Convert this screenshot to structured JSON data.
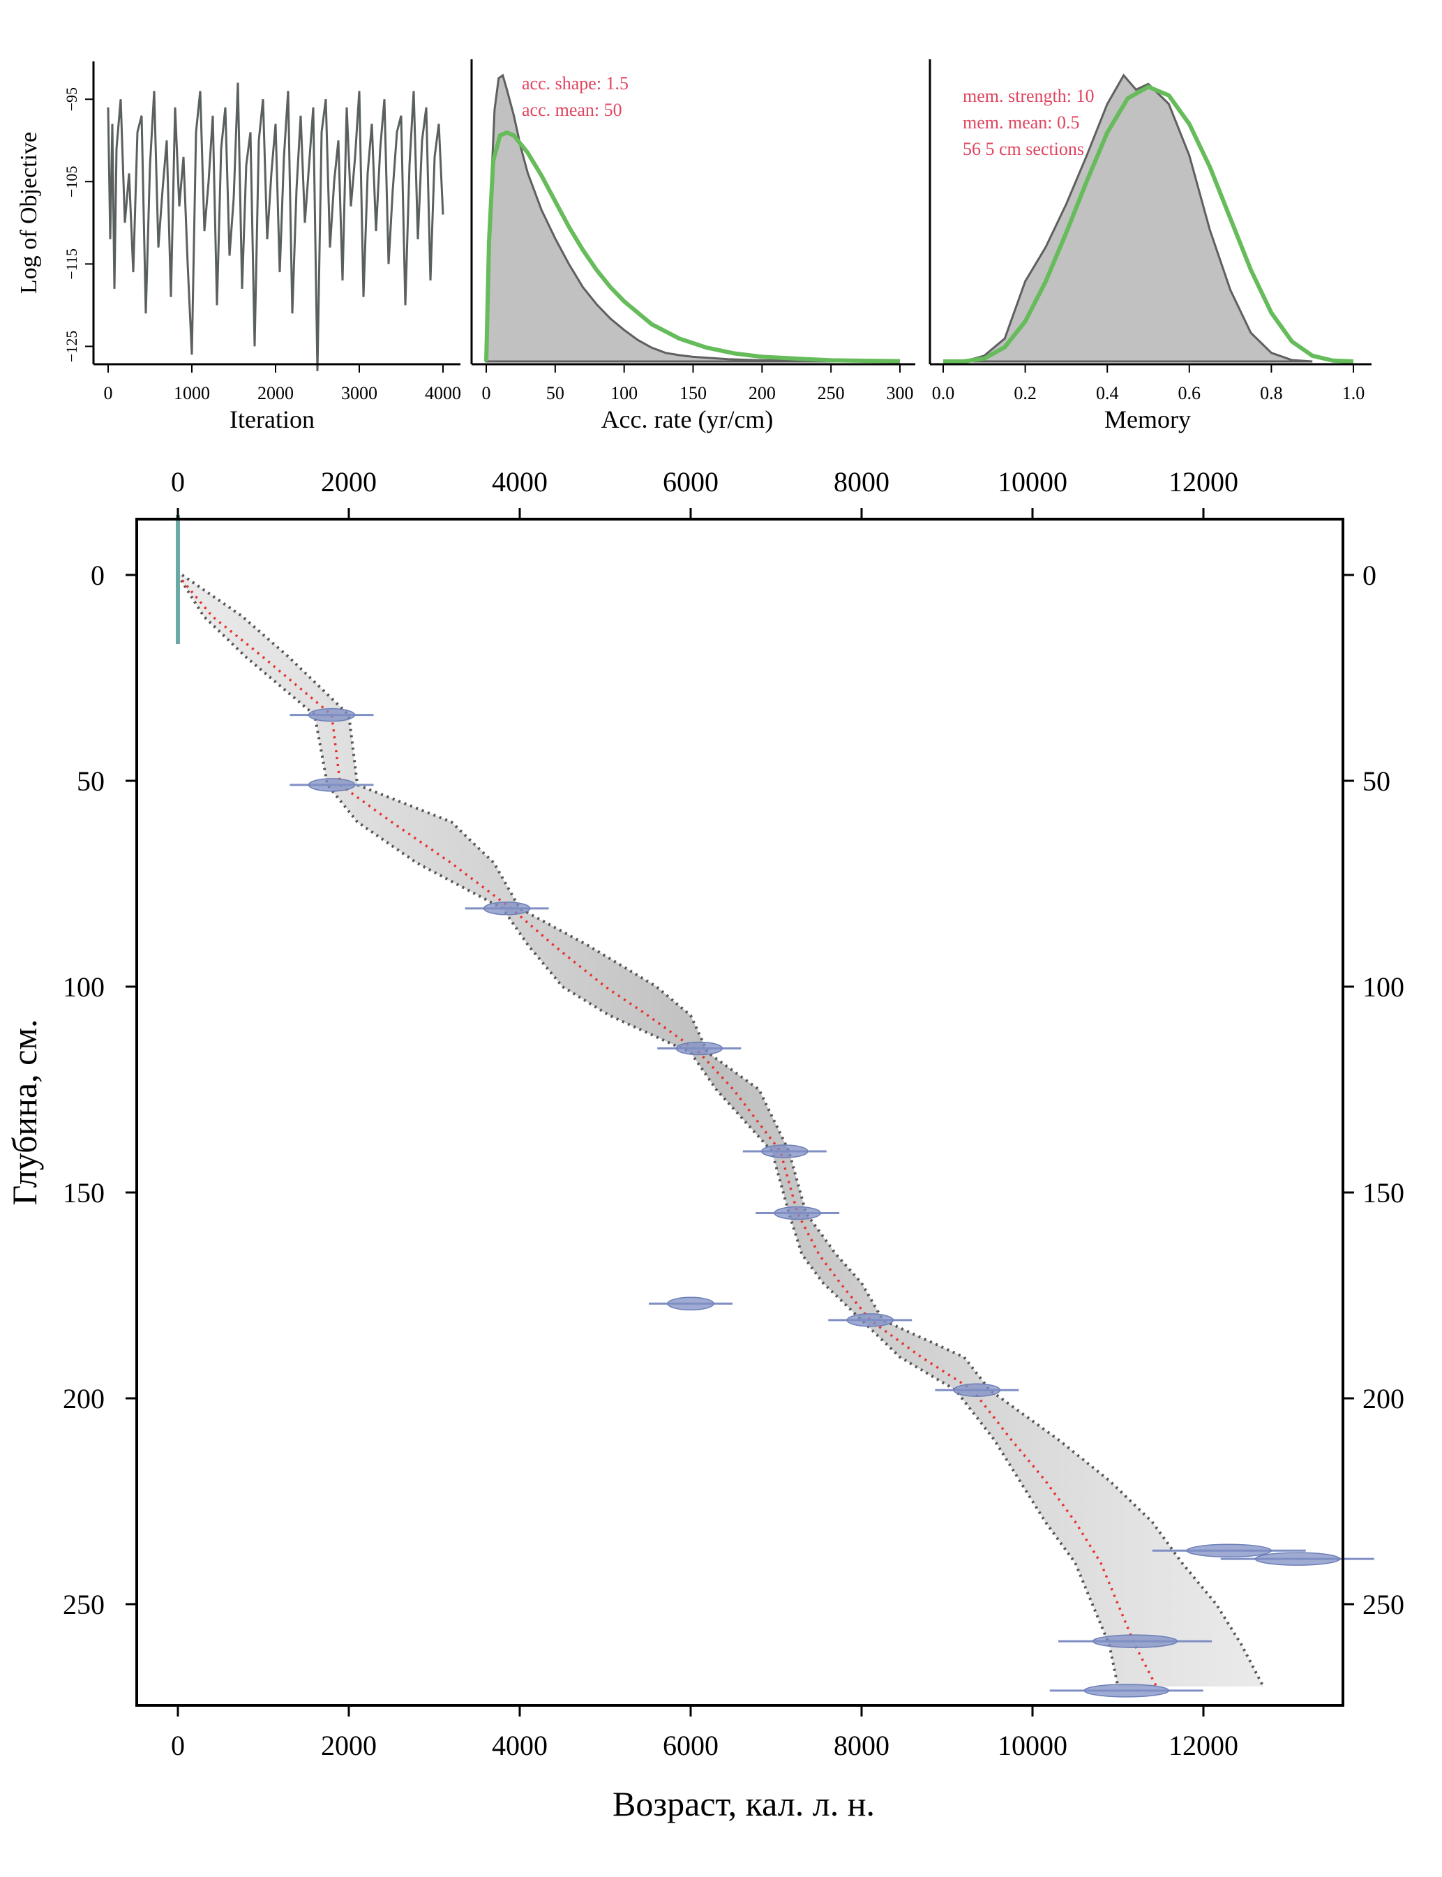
{
  "chart_data": [
    {
      "id": "trace",
      "type": "line",
      "xlabel": "Iteration",
      "ylabel": "Log of Objective",
      "xlim": [
        0,
        4000
      ],
      "ylim": [
        -127,
        -91
      ],
      "xticks": [
        0,
        1000,
        2000,
        3000,
        4000
      ],
      "yticks": [
        -95,
        -105,
        -115,
        -125
      ],
      "series": [
        {
          "color": "#5a5f60",
          "x": [
            0,
            25,
            50,
            75,
            100,
            150,
            200,
            250,
            300,
            350,
            400,
            450,
            500,
            550,
            600,
            650,
            700,
            750,
            800,
            850,
            900,
            950,
            1000,
            1050,
            1100,
            1150,
            1200,
            1250,
            1300,
            1350,
            1400,
            1450,
            1500,
            1550,
            1600,
            1650,
            1700,
            1750,
            1800,
            1850,
            1900,
            1950,
            2000,
            2050,
            2100,
            2150,
            2200,
            2250,
            2300,
            2350,
            2400,
            2450,
            2500,
            2550,
            2600,
            2650,
            2700,
            2750,
            2800,
            2850,
            2900,
            2950,
            3000,
            3050,
            3100,
            3150,
            3200,
            3250,
            3300,
            3350,
            3400,
            3450,
            3500,
            3550,
            3600,
            3650,
            3700,
            3750,
            3800,
            3850,
            3900,
            3950,
            4000
          ],
          "y": [
            -96,
            -112,
            -98,
            -118,
            -101,
            -95,
            -110,
            -104,
            -116,
            -99,
            -97,
            -121,
            -103,
            -94,
            -113,
            -106,
            -100,
            -119,
            -96,
            -108,
            -102,
            -115,
            -126,
            -99,
            -94,
            -111,
            -105,
            -97,
            -120,
            -101,
            -96,
            -114,
            -107,
            -93,
            -118,
            -103,
            -99,
            -125,
            -100,
            -95,
            -112,
            -104,
            -98,
            -116,
            -102,
            -94,
            -121,
            -106,
            -97,
            -110,
            -103,
            -96,
            -128,
            -99,
            -95,
            -113,
            -105,
            -100,
            -117,
            -96,
            -108,
            -102,
            -94,
            -119,
            -104,
            -98,
            -111,
            -101,
            -95,
            -115,
            -106,
            -99,
            -97,
            -120,
            -103,
            -94,
            -112,
            -100,
            -96,
            -117,
            -102,
            -98,
            -109
          ]
        }
      ]
    },
    {
      "id": "acc_rate",
      "type": "area",
      "xlabel": "Acc. rate (yr/cm)",
      "xlim": [
        0,
        300
      ],
      "xticks": [
        0,
        50,
        100,
        150,
        200,
        250,
        300
      ],
      "annotations": [
        "acc. shape: 1.5",
        "acc. mean: 50"
      ],
      "posterior": {
        "x": [
          0,
          3,
          6,
          9,
          12,
          15,
          20,
          25,
          30,
          40,
          50,
          60,
          70,
          80,
          90,
          100,
          110,
          120,
          130,
          140,
          150,
          175,
          200,
          250,
          300
        ],
        "density": [
          0.0,
          0.55,
          0.88,
          0.99,
          1.0,
          0.95,
          0.86,
          0.75,
          0.66,
          0.53,
          0.43,
          0.34,
          0.26,
          0.2,
          0.15,
          0.11,
          0.075,
          0.048,
          0.03,
          0.022,
          0.016,
          0.008,
          0.004,
          0.001,
          0.0
        ]
      },
      "prior": {
        "color": "#66bb5a",
        "x": [
          0,
          2,
          5,
          10,
          15,
          20,
          30,
          40,
          50,
          60,
          70,
          80,
          90,
          100,
          120,
          140,
          160,
          180,
          200,
          250,
          300
        ],
        "density": [
          0.0,
          0.42,
          0.7,
          0.79,
          0.8,
          0.79,
          0.73,
          0.65,
          0.56,
          0.47,
          0.39,
          0.32,
          0.26,
          0.21,
          0.13,
          0.08,
          0.048,
          0.028,
          0.016,
          0.004,
          0.001
        ]
      }
    },
    {
      "id": "memory",
      "type": "area",
      "xlabel": "Memory",
      "xlim": [
        0,
        1
      ],
      "xticks": [
        0.0,
        0.2,
        0.4,
        0.6,
        0.8,
        1.0
      ],
      "annotations": [
        "mem. strength: 10",
        "mem. mean: 0.5",
        "56 5 cm sections"
      ],
      "posterior": {
        "x": [
          0.05,
          0.1,
          0.15,
          0.2,
          0.25,
          0.3,
          0.35,
          0.4,
          0.44,
          0.47,
          0.5,
          0.55,
          0.6,
          0.65,
          0.7,
          0.75,
          0.8,
          0.85,
          0.9
        ],
        "density": [
          0.0,
          0.02,
          0.08,
          0.28,
          0.4,
          0.55,
          0.72,
          0.9,
          1.0,
          0.95,
          0.97,
          0.9,
          0.72,
          0.46,
          0.25,
          0.1,
          0.03,
          0.005,
          0.0
        ]
      },
      "prior": {
        "color": "#66bb5a",
        "x": [
          0.0,
          0.05,
          0.1,
          0.15,
          0.2,
          0.25,
          0.3,
          0.35,
          0.4,
          0.45,
          0.5,
          0.55,
          0.6,
          0.65,
          0.7,
          0.75,
          0.8,
          0.85,
          0.9,
          0.95,
          1.0
        ],
        "density": [
          0.0,
          0.0,
          0.01,
          0.05,
          0.14,
          0.28,
          0.45,
          0.63,
          0.8,
          0.92,
          0.96,
          0.93,
          0.83,
          0.68,
          0.5,
          0.32,
          0.17,
          0.07,
          0.02,
          0.003,
          0.0
        ]
      }
    },
    {
      "id": "age_depth",
      "type": "line",
      "xlabel": "Возраст, кал. л. н.",
      "ylabel": "Глубина, см.",
      "xlim": [
        -500,
        13800
      ],
      "ylim": [
        -14,
        275
      ],
      "xticks": [
        0,
        2000,
        4000,
        6000,
        8000,
        10000,
        12000
      ],
      "yticks": [
        0,
        50,
        100,
        150,
        200,
        250
      ],
      "model": {
        "depth": [
          0,
          10,
          20,
          34,
          51,
          60,
          70,
          81,
          90,
          100,
          107,
          116,
          125,
          140,
          155,
          165,
          172,
          181,
          190,
          198,
          210,
          220,
          230,
          240,
          250,
          260,
          270
        ],
        "median": [
          0,
          400,
          1000,
          1800,
          1900,
          2500,
          3200,
          3900,
          4400,
          5000,
          5500,
          6100,
          6500,
          7050,
          7250,
          7500,
          7750,
          8100,
          8700,
          9300,
          9750,
          10150,
          10500,
          10800,
          11000,
          11200,
          11450
        ],
        "min": [
          0,
          300,
          800,
          1600,
          1750,
          2100,
          2800,
          3800,
          4100,
          4500,
          5050,
          6000,
          6300,
          6950,
          7150,
          7300,
          7550,
          8000,
          8450,
          9100,
          9550,
          9850,
          10150,
          10500,
          10700,
          10900,
          11000
        ],
        "max": [
          50,
          750,
          1300,
          2000,
          2100,
          3200,
          3700,
          4000,
          4800,
          5600,
          6000,
          6200,
          6800,
          7150,
          7350,
          7700,
          8000,
          8250,
          9200,
          9500,
          10300,
          10900,
          11400,
          11750,
          12150,
          12450,
          12700
        ]
      },
      "dates": [
        {
          "age": 0,
          "depth": 0,
          "color": "#6aa9a6"
        },
        {
          "age": 1800,
          "depth": 34,
          "color": "#7f8fc4"
        },
        {
          "age": 1800,
          "depth": 51,
          "color": "#7f8fc4"
        },
        {
          "age": 3850,
          "depth": 81,
          "color": "#7f8fc4"
        },
        {
          "age": 6100,
          "depth": 115,
          "color": "#7f8fc4"
        },
        {
          "age": 7100,
          "depth": 140,
          "color": "#7f8fc4"
        },
        {
          "age": 7250,
          "depth": 155,
          "color": "#7f8fc4"
        },
        {
          "age": 6000,
          "depth": 177,
          "color": "#7f8fc4"
        },
        {
          "age": 8100,
          "depth": 181,
          "color": "#7f8fc4"
        },
        {
          "age": 9350,
          "depth": 198,
          "color": "#7f8fc4"
        },
        {
          "age": 12300,
          "depth": 237,
          "color": "#7f8fc4"
        },
        {
          "age": 13100,
          "depth": 239,
          "color": "#7f8fc4"
        },
        {
          "age": 11200,
          "depth": 259,
          "color": "#7f8fc4"
        },
        {
          "age": 11100,
          "depth": 271,
          "color": "#7f8fc4"
        }
      ],
      "colors": {
        "median": "#e8312d",
        "range": "#555555",
        "cloud": "#b7b7b7"
      }
    }
  ]
}
